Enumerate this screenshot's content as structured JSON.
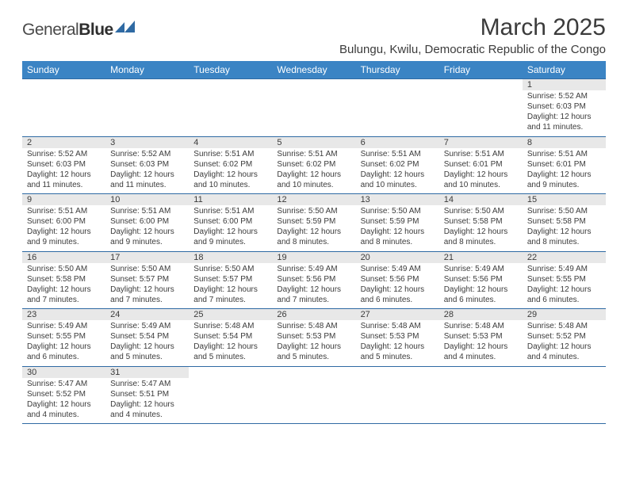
{
  "logo": {
    "text1": "General",
    "text2": "Blue"
  },
  "title": "March 2025",
  "location": "Bulungu, Kwilu, Democratic Republic of the Congo",
  "colors": {
    "header_bg": "#3b84c4",
    "header_fg": "#ffffff",
    "daynum_bg": "#e8e8e8",
    "rule": "#2f6aa3",
    "text": "#3b3b3b",
    "logo_shape": "#2f6aa3"
  },
  "day_headers": [
    "Sunday",
    "Monday",
    "Tuesday",
    "Wednesday",
    "Thursday",
    "Friday",
    "Saturday"
  ],
  "weeks": [
    [
      null,
      null,
      null,
      null,
      null,
      null,
      {
        "n": "1",
        "sr": "Sunrise: 5:52 AM",
        "ss": "Sunset: 6:03 PM",
        "d1": "Daylight: 12 hours",
        "d2": "and 11 minutes."
      }
    ],
    [
      {
        "n": "2",
        "sr": "Sunrise: 5:52 AM",
        "ss": "Sunset: 6:03 PM",
        "d1": "Daylight: 12 hours",
        "d2": "and 11 minutes."
      },
      {
        "n": "3",
        "sr": "Sunrise: 5:52 AM",
        "ss": "Sunset: 6:03 PM",
        "d1": "Daylight: 12 hours",
        "d2": "and 11 minutes."
      },
      {
        "n": "4",
        "sr": "Sunrise: 5:51 AM",
        "ss": "Sunset: 6:02 PM",
        "d1": "Daylight: 12 hours",
        "d2": "and 10 minutes."
      },
      {
        "n": "5",
        "sr": "Sunrise: 5:51 AM",
        "ss": "Sunset: 6:02 PM",
        "d1": "Daylight: 12 hours",
        "d2": "and 10 minutes."
      },
      {
        "n": "6",
        "sr": "Sunrise: 5:51 AM",
        "ss": "Sunset: 6:02 PM",
        "d1": "Daylight: 12 hours",
        "d2": "and 10 minutes."
      },
      {
        "n": "7",
        "sr": "Sunrise: 5:51 AM",
        "ss": "Sunset: 6:01 PM",
        "d1": "Daylight: 12 hours",
        "d2": "and 10 minutes."
      },
      {
        "n": "8",
        "sr": "Sunrise: 5:51 AM",
        "ss": "Sunset: 6:01 PM",
        "d1": "Daylight: 12 hours",
        "d2": "and 9 minutes."
      }
    ],
    [
      {
        "n": "9",
        "sr": "Sunrise: 5:51 AM",
        "ss": "Sunset: 6:00 PM",
        "d1": "Daylight: 12 hours",
        "d2": "and 9 minutes."
      },
      {
        "n": "10",
        "sr": "Sunrise: 5:51 AM",
        "ss": "Sunset: 6:00 PM",
        "d1": "Daylight: 12 hours",
        "d2": "and 9 minutes."
      },
      {
        "n": "11",
        "sr": "Sunrise: 5:51 AM",
        "ss": "Sunset: 6:00 PM",
        "d1": "Daylight: 12 hours",
        "d2": "and 9 minutes."
      },
      {
        "n": "12",
        "sr": "Sunrise: 5:50 AM",
        "ss": "Sunset: 5:59 PM",
        "d1": "Daylight: 12 hours",
        "d2": "and 8 minutes."
      },
      {
        "n": "13",
        "sr": "Sunrise: 5:50 AM",
        "ss": "Sunset: 5:59 PM",
        "d1": "Daylight: 12 hours",
        "d2": "and 8 minutes."
      },
      {
        "n": "14",
        "sr": "Sunrise: 5:50 AM",
        "ss": "Sunset: 5:58 PM",
        "d1": "Daylight: 12 hours",
        "d2": "and 8 minutes."
      },
      {
        "n": "15",
        "sr": "Sunrise: 5:50 AM",
        "ss": "Sunset: 5:58 PM",
        "d1": "Daylight: 12 hours",
        "d2": "and 8 minutes."
      }
    ],
    [
      {
        "n": "16",
        "sr": "Sunrise: 5:50 AM",
        "ss": "Sunset: 5:58 PM",
        "d1": "Daylight: 12 hours",
        "d2": "and 7 minutes."
      },
      {
        "n": "17",
        "sr": "Sunrise: 5:50 AM",
        "ss": "Sunset: 5:57 PM",
        "d1": "Daylight: 12 hours",
        "d2": "and 7 minutes."
      },
      {
        "n": "18",
        "sr": "Sunrise: 5:50 AM",
        "ss": "Sunset: 5:57 PM",
        "d1": "Daylight: 12 hours",
        "d2": "and 7 minutes."
      },
      {
        "n": "19",
        "sr": "Sunrise: 5:49 AM",
        "ss": "Sunset: 5:56 PM",
        "d1": "Daylight: 12 hours",
        "d2": "and 7 minutes."
      },
      {
        "n": "20",
        "sr": "Sunrise: 5:49 AM",
        "ss": "Sunset: 5:56 PM",
        "d1": "Daylight: 12 hours",
        "d2": "and 6 minutes."
      },
      {
        "n": "21",
        "sr": "Sunrise: 5:49 AM",
        "ss": "Sunset: 5:56 PM",
        "d1": "Daylight: 12 hours",
        "d2": "and 6 minutes."
      },
      {
        "n": "22",
        "sr": "Sunrise: 5:49 AM",
        "ss": "Sunset: 5:55 PM",
        "d1": "Daylight: 12 hours",
        "d2": "and 6 minutes."
      }
    ],
    [
      {
        "n": "23",
        "sr": "Sunrise: 5:49 AM",
        "ss": "Sunset: 5:55 PM",
        "d1": "Daylight: 12 hours",
        "d2": "and 6 minutes."
      },
      {
        "n": "24",
        "sr": "Sunrise: 5:49 AM",
        "ss": "Sunset: 5:54 PM",
        "d1": "Daylight: 12 hours",
        "d2": "and 5 minutes."
      },
      {
        "n": "25",
        "sr": "Sunrise: 5:48 AM",
        "ss": "Sunset: 5:54 PM",
        "d1": "Daylight: 12 hours",
        "d2": "and 5 minutes."
      },
      {
        "n": "26",
        "sr": "Sunrise: 5:48 AM",
        "ss": "Sunset: 5:53 PM",
        "d1": "Daylight: 12 hours",
        "d2": "and 5 minutes."
      },
      {
        "n": "27",
        "sr": "Sunrise: 5:48 AM",
        "ss": "Sunset: 5:53 PM",
        "d1": "Daylight: 12 hours",
        "d2": "and 5 minutes."
      },
      {
        "n": "28",
        "sr": "Sunrise: 5:48 AM",
        "ss": "Sunset: 5:53 PM",
        "d1": "Daylight: 12 hours",
        "d2": "and 4 minutes."
      },
      {
        "n": "29",
        "sr": "Sunrise: 5:48 AM",
        "ss": "Sunset: 5:52 PM",
        "d1": "Daylight: 12 hours",
        "d2": "and 4 minutes."
      }
    ],
    [
      {
        "n": "30",
        "sr": "Sunrise: 5:47 AM",
        "ss": "Sunset: 5:52 PM",
        "d1": "Daylight: 12 hours",
        "d2": "and 4 minutes."
      },
      {
        "n": "31",
        "sr": "Sunrise: 5:47 AM",
        "ss": "Sunset: 5:51 PM",
        "d1": "Daylight: 12 hours",
        "d2": "and 4 minutes."
      },
      null,
      null,
      null,
      null,
      null
    ]
  ]
}
